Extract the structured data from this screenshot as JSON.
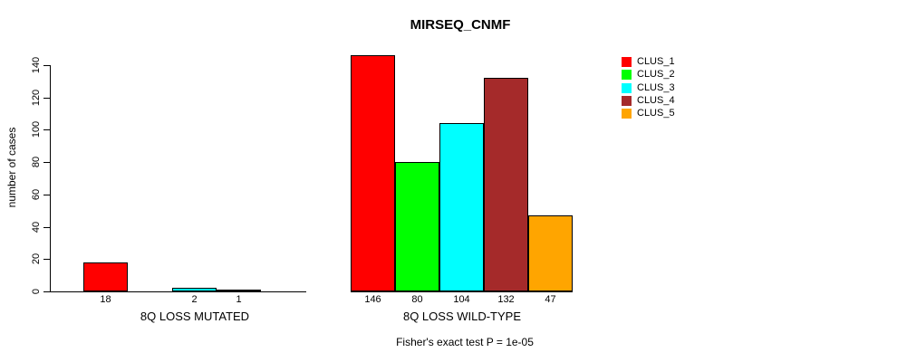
{
  "title": "MIRSEQ_CNMF",
  "footnote": "Fisher's exact test P = 1e-05",
  "chart_data": {
    "type": "bar",
    "title": "MIRSEQ_CNMF",
    "xlabel": "",
    "ylabel": "number of cases",
    "ylim": [
      0,
      140
    ],
    "yticks": [
      0,
      20,
      40,
      60,
      80,
      100,
      120,
      140
    ],
    "grid": false,
    "series_names": [
      "CLUS_1",
      "CLUS_2",
      "CLUS_3",
      "CLUS_4",
      "CLUS_5"
    ],
    "series_colors": [
      "#ff0000",
      "#00ff00",
      "#00ffff",
      "#a52a2a",
      "#ffa500"
    ],
    "groups": [
      {
        "label": "8Q LOSS MUTATED",
        "values": [
          18,
          0,
          2,
          1,
          0
        ]
      },
      {
        "label": "8Q LOSS WILD-TYPE",
        "values": [
          146,
          80,
          104,
          132,
          47
        ]
      }
    ],
    "bar_value_labels": "values shown under each nonzero bar",
    "legend": {
      "position": "top-right",
      "labels": [
        "CLUS_1",
        "CLUS_2",
        "CLUS_3",
        "CLUS_4",
        "CLUS_5"
      ]
    },
    "annotation": "Fisher's exact test P = 1e-05"
  }
}
